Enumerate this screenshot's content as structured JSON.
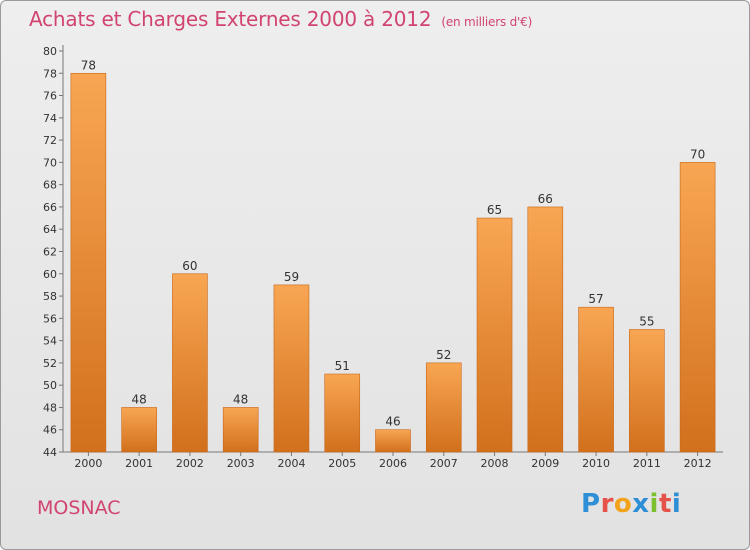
{
  "title": "Achats et Charges Externes 2000 à 2012",
  "subtitle": "(en milliers d'€)",
  "city": "MOSNAC",
  "logo": {
    "text": "Proxiti",
    "letters": [
      "P",
      "r",
      "o",
      "x",
      "i",
      "t",
      "i"
    ],
    "colors": [
      "#2e8fd6",
      "#e5524a",
      "#f2a31b",
      "#2e8fd6",
      "#7cbf2f",
      "#e5524a",
      "#2e8fd6"
    ]
  },
  "chart_data": {
    "type": "bar",
    "title": "Achats et Charges Externes 2000 à 2012",
    "subtitle": "(en milliers d'€)",
    "categories": [
      "2000",
      "2001",
      "2002",
      "2003",
      "2004",
      "2005",
      "2006",
      "2007",
      "2008",
      "2009",
      "2010",
      "2011",
      "2012"
    ],
    "values": [
      78,
      48,
      60,
      48,
      59,
      51,
      46,
      52,
      65,
      66,
      57,
      55,
      70
    ],
    "ylim": [
      44,
      80
    ],
    "ytick_step": 2,
    "grid": false,
    "bar_color": "#f0922e",
    "xlabel": "",
    "ylabel": ""
  }
}
